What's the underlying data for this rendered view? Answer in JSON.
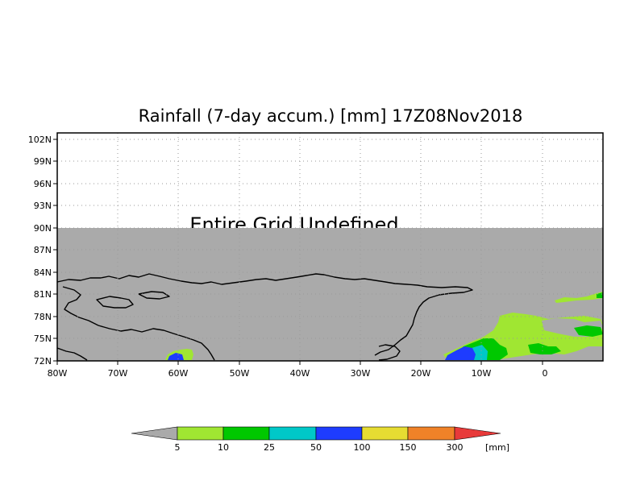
{
  "title": "Rainfall (7-day accum.) [mm] 17Z08Nov2018",
  "undefined_note": "Entire Grid Undefined",
  "map": {
    "lon_range": [
      -80,
      10
    ],
    "lat_range": [
      72,
      104
    ],
    "data_lat_top": 90,
    "undefined_color": "#aaaaaa",
    "x_ticks": [
      "80W",
      "70W",
      "60W",
      "50W",
      "40W",
      "30W",
      "20W",
      "10W",
      "0"
    ],
    "y_ticks": [
      "102N",
      "99N",
      "96N",
      "93N",
      "90N",
      "87N",
      "84N",
      "81N",
      "78N",
      "75N",
      "72N"
    ]
  },
  "legend": {
    "unit": "[mm]",
    "below_color": "#aaaaaa",
    "above_color": "#e83a3a",
    "bins": [
      {
        "label": "5",
        "color": "#a0e632"
      },
      {
        "label": "10",
        "color": "#00c800"
      },
      {
        "label": "25",
        "color": "#00c8c8"
      },
      {
        "label": "50",
        "color": "#1e3cff"
      },
      {
        "label": "100",
        "color": "#e6dc32"
      },
      {
        "label": "150",
        "color": "#f08228"
      },
      {
        "label": "300",
        "color": null
      }
    ]
  }
}
